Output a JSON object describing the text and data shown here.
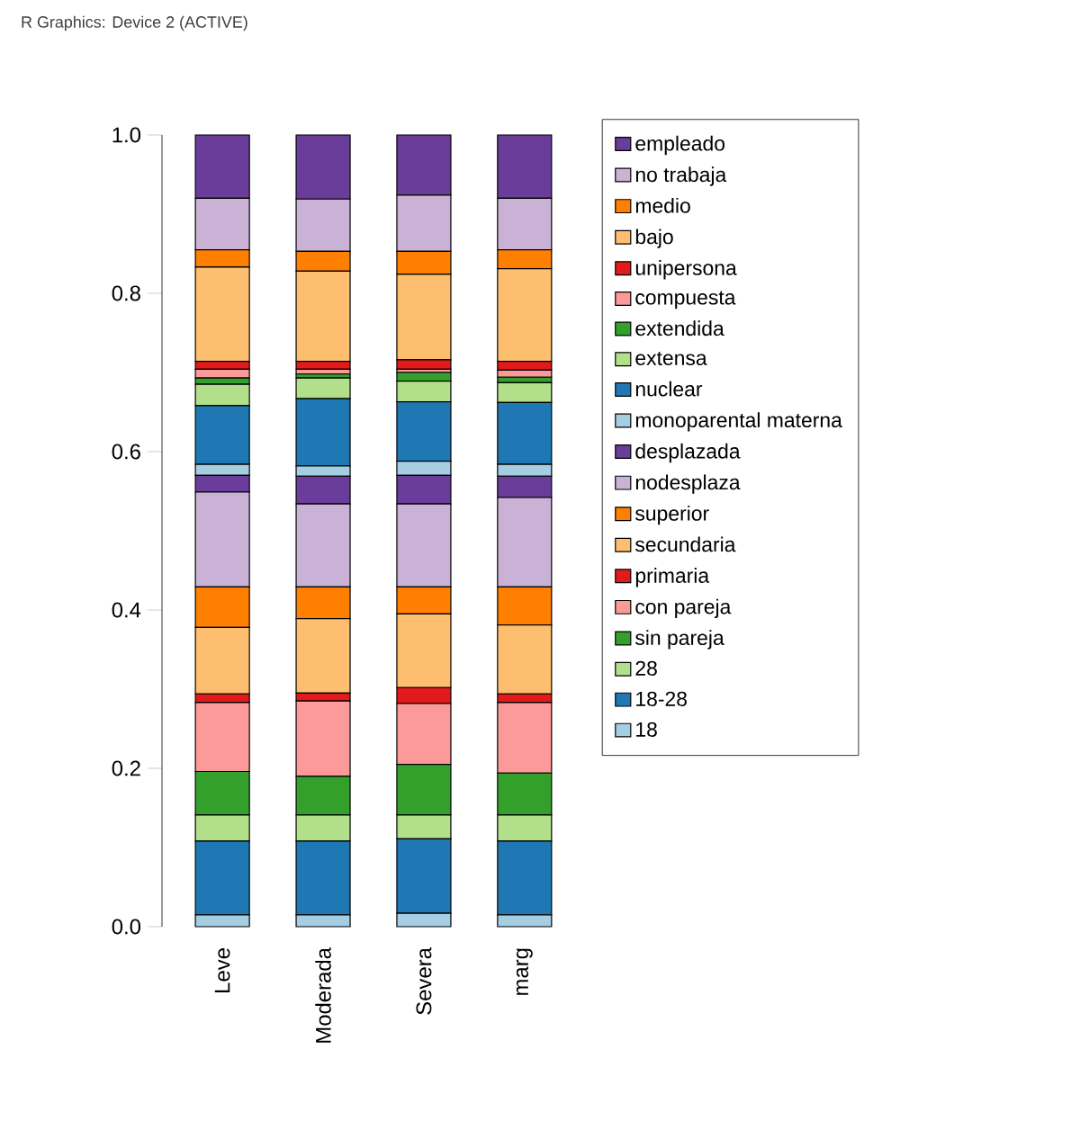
{
  "chart_data": {
    "type": "bar",
    "stacked": true,
    "annotations": [
      "R Graphics: Device 2 (ACTIVE)"
    ],
    "categories": [
      "Leve",
      "Moderada",
      "Severa",
      "marg"
    ],
    "ylim": [
      0,
      1
    ],
    "yticks": [
      {
        "value": 0,
        "label": "0.0"
      },
      {
        "value": 0.2,
        "label": "0.2"
      },
      {
        "value": 0.4,
        "label": "0.4"
      },
      {
        "value": 0.6,
        "label": "0.6"
      },
      {
        "value": 0.8,
        "label": "0.8"
      },
      {
        "value": 1,
        "label": "1.0"
      }
    ],
    "grid": false,
    "legend": "right",
    "series": [
      {
        "name": "18",
        "color": "#a6cee3",
        "values": [
          0.015,
          0.015,
          0.017,
          0.015
        ]
      },
      {
        "name": "18-28",
        "color": "#1f78b4",
        "values": [
          0.093,
          0.093,
          0.094,
          0.093
        ]
      },
      {
        "name": "28",
        "color": "#b2df8a",
        "values": [
          0.033,
          0.033,
          0.03,
          0.033
        ]
      },
      {
        "name": "sin pareja",
        "color": "#33a02c",
        "values": [
          0.055,
          0.049,
          0.064,
          0.053
        ]
      },
      {
        "name": "con pareja",
        "color": "#fb9a99",
        "values": [
          0.087,
          0.095,
          0.077,
          0.089
        ]
      },
      {
        "name": "primaria",
        "color": "#e31a1c",
        "values": [
          0.011,
          0.01,
          0.02,
          0.011
        ]
      },
      {
        "name": "secundaria",
        "color": "#fdbf6f",
        "values": [
          0.084,
          0.094,
          0.093,
          0.087
        ]
      },
      {
        "name": "superior",
        "color": "#ff7f00",
        "values": [
          0.051,
          0.04,
          0.034,
          0.048
        ]
      },
      {
        "name": "nodesplaza",
        "color": "#cab2d6",
        "values": [
          0.12,
          0.105,
          0.105,
          0.113
        ]
      },
      {
        "name": "desplazada",
        "color": "#6a3d9a",
        "values": [
          0.021,
          0.035,
          0.036,
          0.027
        ]
      },
      {
        "name": "monoparental materna",
        "color": "#a6cee3",
        "values": [
          0.014,
          0.013,
          0.018,
          0.015
        ]
      },
      {
        "name": "nuclear",
        "color": "#1f78b4",
        "values": [
          0.074,
          0.085,
          0.075,
          0.078
        ]
      },
      {
        "name": "extensa",
        "color": "#b2df8a",
        "values": [
          0.027,
          0.026,
          0.026,
          0.025
        ]
      },
      {
        "name": "extendida",
        "color": "#33a02c",
        "values": [
          0.008,
          0.005,
          0.011,
          0.007
        ]
      },
      {
        "name": "compuesta",
        "color": "#fb9a99",
        "values": [
          0.011,
          0.006,
          0.004,
          0.009
        ]
      },
      {
        "name": "unipersona",
        "color": "#e31a1c",
        "values": [
          0.01,
          0.01,
          0.012,
          0.011
        ]
      },
      {
        "name": "bajo",
        "color": "#fdbf6f",
        "values": [
          0.119,
          0.114,
          0.108,
          0.117
        ]
      },
      {
        "name": "medio",
        "color": "#ff7f00",
        "values": [
          0.022,
          0.025,
          0.029,
          0.024
        ]
      },
      {
        "name": "no trabaja",
        "color": "#cab2d6",
        "values": [
          0.065,
          0.066,
          0.071,
          0.065
        ]
      },
      {
        "name": "empleado",
        "color": "#6a3d9a",
        "values": [
          0.08,
          0.081,
          0.076,
          0.08
        ]
      }
    ]
  }
}
